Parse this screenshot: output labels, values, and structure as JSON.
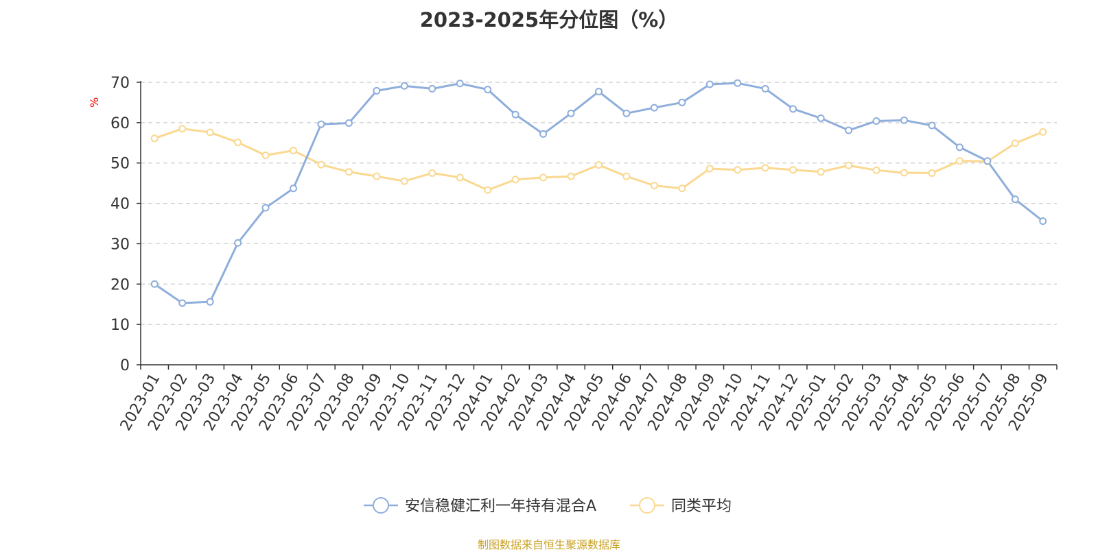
{
  "chart_data": {
    "type": "line",
    "title": "2023-2025年分位图（%）",
    "ylabel": "%",
    "xlabel": "",
    "ylim": [
      0,
      70
    ],
    "yticks": [
      0,
      10,
      20,
      30,
      40,
      50,
      60,
      70
    ],
    "grid": true,
    "legend_position": "bottom",
    "categories": [
      "2023-01",
      "2023-02",
      "2023-03",
      "2023-04",
      "2023-05",
      "2023-06",
      "2023-07",
      "2023-08",
      "2023-09",
      "2023-10",
      "2023-11",
      "2023-12",
      "2024-01",
      "2024-02",
      "2024-03",
      "2024-04",
      "2024-05",
      "2024-06",
      "2024-07",
      "2024-08",
      "2024-09",
      "2024-10",
      "2024-11",
      "2024-12",
      "2025-01",
      "2025-02",
      "2025-03",
      "2025-04",
      "2025-05",
      "2025-06",
      "2025-07",
      "2025-08",
      "2025-09"
    ],
    "series": [
      {
        "name": "安信稳健汇利一年持有混合A",
        "color": "#8eaedb",
        "values": [
          20.0,
          15.3,
          15.6,
          30.2,
          38.9,
          43.7,
          59.6,
          59.9,
          67.9,
          69.1,
          68.4,
          69.7,
          68.2,
          62.0,
          57.2,
          62.3,
          67.7,
          62.3,
          63.7,
          65.0,
          69.5,
          69.8,
          68.4,
          63.4,
          61.1,
          58.1,
          60.4,
          60.6,
          59.3,
          53.9,
          50.5,
          41.0,
          35.6
        ]
      },
      {
        "name": "同类平均",
        "color": "#fad88f",
        "values": [
          56.1,
          58.5,
          57.6,
          55.1,
          51.9,
          53.1,
          49.6,
          47.8,
          46.7,
          45.5,
          47.5,
          46.4,
          43.3,
          45.9,
          46.4,
          46.7,
          49.5,
          46.7,
          44.4,
          43.7,
          48.6,
          48.3,
          48.8,
          48.3,
          47.8,
          49.4,
          48.2,
          47.6,
          47.5,
          50.5,
          50.4,
          54.9,
          57.7
        ]
      }
    ],
    "source_note": "制图数据来自恒生聚源数据库"
  }
}
